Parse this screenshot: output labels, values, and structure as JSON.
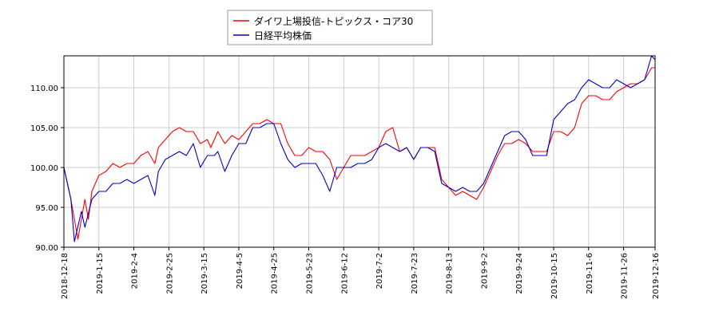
{
  "chart_data": {
    "type": "line",
    "title": "",
    "xlabel": "",
    "ylabel": "",
    "ylim": [
      90,
      114
    ],
    "yticks": [
      90,
      95,
      100,
      105,
      110
    ],
    "ytick_labels": [
      "90.00",
      "95.00",
      "100.00",
      "105.00",
      "110.00"
    ],
    "x_ticks": [
      "2018-12-18",
      "2019-1-15",
      "2019-2-4",
      "2019-2-25",
      "2019-3-15",
      "2019-4-5",
      "2019-4-25",
      "2019-5-23",
      "2019-6-12",
      "2019-7-2",
      "2019-7-23",
      "2019-8-13",
      "2019-9-2",
      "2019-9-24",
      "2019-10-15",
      "2019-11-6",
      "2019-11-26",
      "2019-12-16"
    ],
    "grid": true,
    "legend_position": "top-center",
    "series": [
      {
        "name": "ダイワ上場投信-トピックス・コア30",
        "color": "#ff0000",
        "points": [
          [
            0,
            100.0
          ],
          [
            2,
            96.0
          ],
          [
            4,
            91.0
          ],
          [
            6,
            96.0
          ],
          [
            7,
            93.5
          ],
          [
            8,
            97.0
          ],
          [
            10,
            99.0
          ],
          [
            12,
            99.5
          ],
          [
            14,
            100.5
          ],
          [
            16,
            100.0
          ],
          [
            18,
            100.5
          ],
          [
            20,
            100.5
          ],
          [
            22,
            101.5
          ],
          [
            24,
            102.0
          ],
          [
            26,
            100.5
          ],
          [
            27,
            102.5
          ],
          [
            29,
            103.5
          ],
          [
            31,
            104.5
          ],
          [
            33,
            105.0
          ],
          [
            35,
            104.5
          ],
          [
            37,
            104.5
          ],
          [
            39,
            103.0
          ],
          [
            41,
            103.5
          ],
          [
            42,
            102.5
          ],
          [
            44,
            104.5
          ],
          [
            46,
            103.0
          ],
          [
            48,
            104.0
          ],
          [
            50,
            103.5
          ],
          [
            52,
            104.5
          ],
          [
            54,
            105.5
          ],
          [
            56,
            105.5
          ],
          [
            58,
            106.0
          ],
          [
            60,
            105.5
          ],
          [
            62,
            105.5
          ],
          [
            64,
            103.0
          ],
          [
            66,
            101.5
          ],
          [
            68,
            101.5
          ],
          [
            70,
            102.5
          ],
          [
            72,
            102.0
          ],
          [
            74,
            102.0
          ],
          [
            76,
            101.0
          ],
          [
            78,
            98.5
          ],
          [
            80,
            100.0
          ],
          [
            82,
            101.5
          ],
          [
            84,
            101.5
          ],
          [
            86,
            101.5
          ],
          [
            88,
            102.0
          ],
          [
            90,
            102.5
          ],
          [
            92,
            104.5
          ],
          [
            94,
            105.0
          ],
          [
            96,
            102.0
          ],
          [
            98,
            102.5
          ],
          [
            100,
            101.0
          ],
          [
            102,
            102.5
          ],
          [
            104,
            102.5
          ],
          [
            106,
            102.5
          ],
          [
            108,
            98.5
          ],
          [
            110,
            97.5
          ],
          [
            112,
            96.5
          ],
          [
            114,
            97.0
          ],
          [
            116,
            96.5
          ],
          [
            118,
            96.0
          ],
          [
            120,
            97.5
          ],
          [
            122,
            99.5
          ],
          [
            124,
            101.5
          ],
          [
            126,
            103.0
          ],
          [
            128,
            103.0
          ],
          [
            130,
            103.5
          ],
          [
            132,
            103.0
          ],
          [
            134,
            102.0
          ],
          [
            136,
            102.0
          ],
          [
            138,
            102.0
          ],
          [
            140,
            104.5
          ],
          [
            142,
            104.5
          ],
          [
            144,
            104.0
          ],
          [
            146,
            105.0
          ],
          [
            148,
            108.0
          ],
          [
            150,
            109.0
          ],
          [
            152,
            109.0
          ],
          [
            154,
            108.5
          ],
          [
            156,
            108.5
          ],
          [
            158,
            109.5
          ],
          [
            160,
            110.0
          ],
          [
            162,
            110.5
          ],
          [
            164,
            110.5
          ],
          [
            166,
            111.0
          ],
          [
            168,
            112.5
          ],
          [
            169,
            112.5
          ]
        ]
      },
      {
        "name": "日経平均株価",
        "color": "#0000cc",
        "points": [
          [
            0,
            100.0
          ],
          [
            2,
            96.0
          ],
          [
            3,
            90.7
          ],
          [
            5,
            94.5
          ],
          [
            6,
            92.5
          ],
          [
            8,
            96.0
          ],
          [
            10,
            97.0
          ],
          [
            12,
            97.0
          ],
          [
            14,
            98.0
          ],
          [
            16,
            98.0
          ],
          [
            18,
            98.5
          ],
          [
            20,
            98.0
          ],
          [
            22,
            98.5
          ],
          [
            24,
            99.0
          ],
          [
            26,
            96.5
          ],
          [
            27,
            99.5
          ],
          [
            29,
            101.0
          ],
          [
            31,
            101.5
          ],
          [
            33,
            102.0
          ],
          [
            35,
            101.5
          ],
          [
            37,
            103.0
          ],
          [
            39,
            100.0
          ],
          [
            41,
            101.5
          ],
          [
            43,
            101.5
          ],
          [
            44,
            102.0
          ],
          [
            46,
            99.5
          ],
          [
            48,
            101.5
          ],
          [
            50,
            103.0
          ],
          [
            52,
            103.0
          ],
          [
            54,
            105.0
          ],
          [
            56,
            105.0
          ],
          [
            58,
            105.5
          ],
          [
            60,
            105.5
          ],
          [
            62,
            103.0
          ],
          [
            64,
            101.0
          ],
          [
            66,
            100.0
          ],
          [
            68,
            100.5
          ],
          [
            70,
            100.5
          ],
          [
            72,
            100.5
          ],
          [
            74,
            99.0
          ],
          [
            76,
            97.0
          ],
          [
            78,
            100.0
          ],
          [
            80,
            100.0
          ],
          [
            82,
            100.0
          ],
          [
            84,
            100.5
          ],
          [
            86,
            100.5
          ],
          [
            88,
            101.0
          ],
          [
            90,
            102.5
          ],
          [
            92,
            103.0
          ],
          [
            94,
            102.5
          ],
          [
            96,
            102.0
          ],
          [
            98,
            102.5
          ],
          [
            100,
            101.0
          ],
          [
            102,
            102.5
          ],
          [
            104,
            102.5
          ],
          [
            106,
            102.0
          ],
          [
            108,
            98.0
          ],
          [
            110,
            97.5
          ],
          [
            112,
            97.0
          ],
          [
            114,
            97.5
          ],
          [
            116,
            97.0
          ],
          [
            118,
            97.0
          ],
          [
            120,
            98.0
          ],
          [
            122,
            100.0
          ],
          [
            124,
            102.0
          ],
          [
            126,
            104.0
          ],
          [
            128,
            104.5
          ],
          [
            130,
            104.5
          ],
          [
            132,
            103.5
          ],
          [
            134,
            101.5
          ],
          [
            136,
            101.5
          ],
          [
            138,
            101.5
          ],
          [
            140,
            106.0
          ],
          [
            142,
            107.0
          ],
          [
            144,
            108.0
          ],
          [
            146,
            108.5
          ],
          [
            148,
            110.0
          ],
          [
            150,
            111.0
          ],
          [
            152,
            110.5
          ],
          [
            154,
            110.0
          ],
          [
            156,
            110.0
          ],
          [
            158,
            111.0
          ],
          [
            160,
            110.5
          ],
          [
            162,
            110.0
          ],
          [
            164,
            110.5
          ],
          [
            166,
            111.0
          ],
          [
            168,
            114.0
          ],
          [
            169,
            113.5
          ]
        ]
      }
    ]
  }
}
